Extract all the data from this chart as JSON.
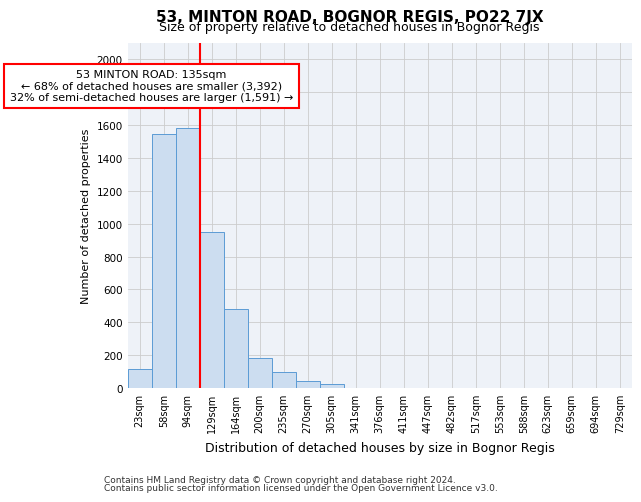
{
  "title": "53, MINTON ROAD, BOGNOR REGIS, PO22 7JX",
  "subtitle": "Size of property relative to detached houses in Bognor Regis",
  "xlabel": "Distribution of detached houses by size in Bognor Regis",
  "ylabel": "Number of detached properties",
  "footnote1": "Contains HM Land Registry data © Crown copyright and database right 2024.",
  "footnote2": "Contains public sector information licensed under the Open Government Licence v3.0.",
  "categories": [
    "23sqm",
    "58sqm",
    "94sqm",
    "129sqm",
    "164sqm",
    "200sqm",
    "235sqm",
    "270sqm",
    "305sqm",
    "341sqm",
    "376sqm",
    "411sqm",
    "447sqm",
    "482sqm",
    "517sqm",
    "553sqm",
    "588sqm",
    "623sqm",
    "659sqm",
    "694sqm",
    "729sqm"
  ],
  "values": [
    115,
    1545,
    1580,
    950,
    480,
    185,
    98,
    40,
    25,
    0,
    0,
    0,
    0,
    0,
    0,
    0,
    0,
    0,
    0,
    0,
    0
  ],
  "bar_color": "#ccddf0",
  "bar_edge_color": "#5b9bd5",
  "red_line_x": 2.5,
  "annotation_line1": "53 MINTON ROAD: 135sqm",
  "annotation_line2": "← 68% of detached houses are smaller (3,392)",
  "annotation_line3": "32% of semi-detached houses are larger (1,591) →",
  "annotation_box_color": "white",
  "annotation_box_edge": "red",
  "ylim_max": 2100,
  "yticks": [
    0,
    200,
    400,
    600,
    800,
    1000,
    1200,
    1400,
    1600,
    1800,
    2000
  ],
  "grid_color": "#cccccc",
  "bg_color": "#eef2f8",
  "title_fontsize": 11,
  "subtitle_fontsize": 9,
  "ylabel_fontsize": 8,
  "xlabel_fontsize": 9,
  "tick_fontsize": 7,
  "footnote_fontsize": 6.5
}
